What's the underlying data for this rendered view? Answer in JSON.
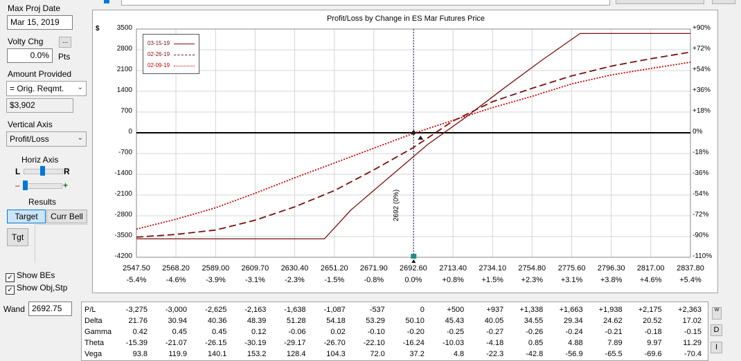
{
  "sidebar": {
    "max_proj_date_label": "Max Proj Date",
    "max_proj_date_value": "Mar 15, 2019",
    "volty_chg_label": "Volty Chg",
    "volty_more_label": "...",
    "volty_value": "0.0%",
    "volty_unit": "Pts",
    "amount_provided_label": "Amount Provided",
    "amount_provided_select": "= Orig. Reqmt.",
    "amount_value": "$3,902",
    "vertical_axis_label": "Vertical Axis",
    "vertical_axis_select": "Profit/Loss",
    "horiz_axis_label": "Horiz Axis",
    "horiz_left": "L",
    "horiz_right": "R",
    "zoom_minus": "–",
    "zoom_plus": "+",
    "results_label": "Results",
    "target_button": "Target",
    "curr_bell_button": "Curr Bell",
    "tgt_button": "Tgt",
    "show_bes_label": "Show BEs",
    "show_obj_label": "Show Obj,Stp",
    "wand_label": "Wand",
    "wand_value": "2692.75"
  },
  "chart_data": {
    "type": "line",
    "title": "Profit/Loss by Change in ES Mar Futures Price",
    "ylabel": "$",
    "ylim": [
      -4200,
      3500
    ],
    "xlim": [
      2547.5,
      2837.8
    ],
    "y_ticks": [
      3500,
      2800,
      2100,
      1400,
      700,
      0,
      -700,
      -1400,
      -2100,
      -2800,
      -3500,
      -4200
    ],
    "y_ticks_labels": [
      "3500",
      "2800",
      "2100",
      "1400",
      "700",
      "0",
      "-700",
      "-1400",
      "-2100",
      "-2800",
      "-3500",
      "-4200"
    ],
    "y_right_labels": [
      "+90%",
      "+72%",
      "+54%",
      "+36%",
      "+18%",
      "0%",
      "-18%",
      "-36%",
      "-54%",
      "-72%",
      "-90%",
      "-110%"
    ],
    "x_ticks": [
      2547.5,
      2568.2,
      2589.0,
      2609.7,
      2630.4,
      2651.2,
      2671.9,
      2692.6,
      2713.4,
      2734.1,
      2754.8,
      2775.6,
      2796.3,
      2817.0,
      2837.8
    ],
    "x_tick_labels": [
      "2547.50",
      "2568.20",
      "2589.00",
      "2609.70",
      "2630.40",
      "2651.20",
      "2671.90",
      "2692.60",
      "2713.40",
      "2734.10",
      "2754.80",
      "2775.60",
      "2796.30",
      "2817.00",
      "2837.80"
    ],
    "x_pct_labels": [
      "-5.4%",
      "-4.6%",
      "-3.9%",
      "-3.1%",
      "-2.3%",
      "-1.5%",
      "-0.8%",
      "0.0%",
      "+0.8%",
      "+1.5%",
      "+2.3%",
      "+3.1%",
      "+3.8%",
      "+4.6%",
      "+5.4%"
    ],
    "current_price_label": "2692 (0%)",
    "current_price": 2692.75,
    "legend": [
      "03-15-19",
      "02-26-19",
      "02-09-19"
    ],
    "series": [
      {
        "name": "03-15-19",
        "style": "solid",
        "color": "#7b0c0c",
        "x": [
          2547.5,
          2563,
          2580,
          2600,
          2620,
          2640,
          2646,
          2660,
          2680,
          2700,
          2720,
          2740,
          2760,
          2780,
          2800,
          2820,
          2837.8
        ],
        "y": [
          -3580,
          -3580,
          -3580,
          -3580,
          -3580,
          -3580,
          -3580,
          -2600,
          -1500,
          -400,
          520,
          1500,
          2450,
          3350,
          3350,
          3350,
          3350
        ]
      },
      {
        "name": "02-26-19",
        "style": "dashed",
        "color": "#7b0c0c",
        "x": [
          2547.5,
          2568.2,
          2589.0,
          2609.7,
          2630.4,
          2651.2,
          2671.9,
          2692.6,
          2713.4,
          2734.1,
          2754.8,
          2775.6,
          2796.3,
          2817.0,
          2837.8
        ],
        "y": [
          -3520,
          -3430,
          -3280,
          -2950,
          -2500,
          -1950,
          -1250,
          -500,
          400,
          1050,
          1500,
          1920,
          2250,
          2500,
          2720
        ]
      },
      {
        "name": "02-09-19",
        "style": "dotted",
        "color": "#c40000",
        "x": [
          2547.5,
          2568.2,
          2589.0,
          2609.7,
          2630.4,
          2651.2,
          2671.9,
          2692.6,
          2713.4,
          2734.1,
          2754.8,
          2775.6,
          2796.3,
          2817.0,
          2837.8
        ],
        "y": [
          -3250,
          -2920,
          -2530,
          -2040,
          -1520,
          -1020,
          -520,
          -20,
          420,
          850,
          1230,
          1650,
          1950,
          2170,
          2380
        ]
      }
    ]
  },
  "greeks": {
    "rows": [
      {
        "name": "P/L",
        "values": [
          "-3,275",
          "-3,000",
          "-2,625",
          "-2,163",
          "-1,638",
          "-1,087",
          "-537",
          "0",
          "+500",
          "+937",
          "+1,338",
          "+1,663",
          "+1,938",
          "+2,175",
          "+2,363"
        ]
      },
      {
        "name": "Delta",
        "values": [
          "21.76",
          "30.94",
          "40.36",
          "48.39",
          "51.28",
          "54.18",
          "53.29",
          "50.10",
          "45.43",
          "40.05",
          "34.55",
          "29.34",
          "24.62",
          "20.52",
          "17.02"
        ]
      },
      {
        "name": "Gamma",
        "values": [
          "0.42",
          "0.45",
          "0.45",
          "0.12",
          "-0.06",
          "0.02",
          "-0.10",
          "-0.20",
          "-0.25",
          "-0.27",
          "-0.26",
          "-0.24",
          "-0.21",
          "-0.18",
          "-0.15"
        ]
      },
      {
        "name": "Theta",
        "values": [
          "-15.39",
          "-21.07",
          "-26.15",
          "-30.19",
          "-29.17",
          "-26.70",
          "-22.10",
          "-16.24",
          "-10.03",
          "-4.18",
          "0.85",
          "4.88",
          "7.89",
          "9.97",
          "11.29"
        ]
      },
      {
        "name": "Vega",
        "values": [
          "93.8",
          "119.9",
          "140.1",
          "153.2",
          "128.4",
          "104.3",
          "72.0",
          "37.2",
          "4.8",
          "-22.3",
          "-42.8",
          "-56.9",
          "-65.5",
          "-69.6",
          "-70.4"
        ]
      }
    ]
  },
  "side_buttons": {
    "w": "W",
    "d": "D",
    "i": "I"
  }
}
